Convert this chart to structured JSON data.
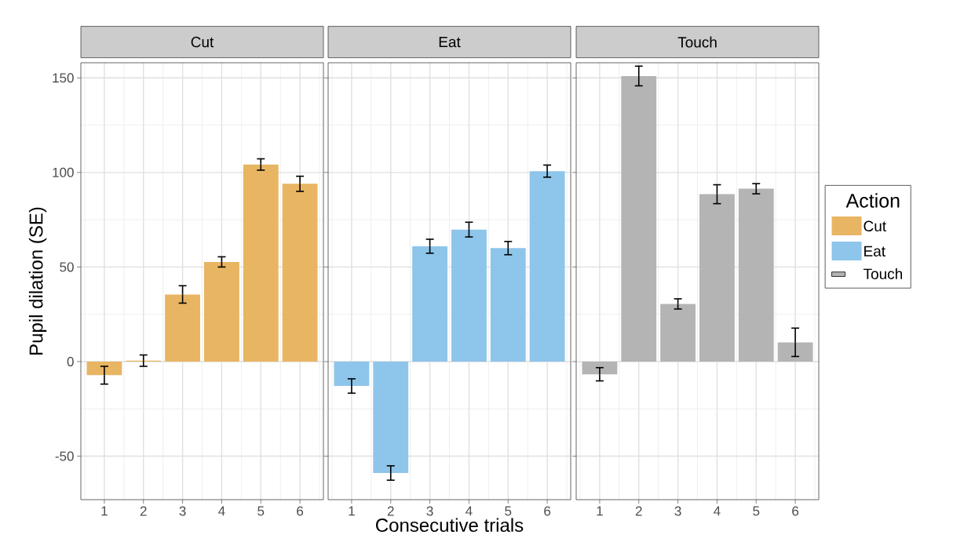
{
  "chart_data": [
    {
      "type": "bar",
      "title": "Cut",
      "ylabel": "Pupil dilation (SE)",
      "categories": [
        "1",
        "2",
        "3",
        "4",
        "5",
        "6"
      ],
      "ylim": [
        -73,
        158
      ],
      "yticks": [
        -50,
        0,
        50,
        100,
        150
      ],
      "grid": true,
      "series": [
        {
          "name": "Cut",
          "color": "#e8b563",
          "values": [
            -7.2,
            0.5,
            35.5,
            52.7,
            104.2,
            94
          ],
          "errors": [
            4.7,
            3,
            4.6,
            2.7,
            3,
            4
          ]
        }
      ]
    },
    {
      "type": "bar",
      "title": "Eat",
      "xlabel": "Consecutive trials",
      "categories": [
        "1",
        "2",
        "3",
        "4",
        "5",
        "6"
      ],
      "ylim": [
        -73,
        158
      ],
      "yticks": [
        -50,
        0,
        50,
        100,
        150
      ],
      "grid": true,
      "tick_labels": "x",
      "series": [
        {
          "name": "Eat",
          "color": "#8ec5ea",
          "values": [
            -12.9,
            -58.9,
            61,
            69.8,
            60,
            100.7
          ],
          "errors": [
            3.8,
            3.8,
            3.7,
            3.9,
            3.5,
            3.2
          ]
        }
      ]
    },
    {
      "type": "bar",
      "title": "Touch",
      "categories": [
        "1",
        "2",
        "3",
        "4",
        "5",
        "6"
      ],
      "ylim": [
        -73,
        158
      ],
      "yticks": [
        -50,
        0,
        50,
        100,
        150
      ],
      "grid": true,
      "tick_labels": "x",
      "legend": "right",
      "legend_title": "Action",
      "series": [
        {
          "name": "Touch",
          "color": "#b4b4b4",
          "values": [
            -6.7,
            151,
            30.5,
            88.5,
            91.4,
            10.2
          ],
          "errors": [
            3.5,
            5.2,
            2.7,
            5,
            2.7,
            7.5
          ]
        }
      ]
    }
  ]
}
